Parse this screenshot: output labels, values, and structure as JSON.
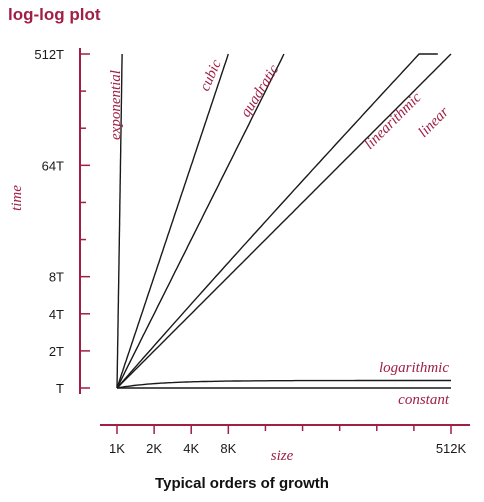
{
  "chart_data": {
    "type": "line",
    "title": "log-log plot",
    "caption": "Typical orders of growth",
    "xlabel": "size",
    "ylabel": "time",
    "x_scale": "log",
    "y_scale": "log",
    "x_ticks": [
      "1K",
      "2K",
      "4K",
      "8K",
      "512K"
    ],
    "y_ticks": [
      "T",
      "2T",
      "4T",
      "8T",
      "64T",
      "512T"
    ],
    "series": [
      {
        "name": "constant",
        "x": [
          "1K",
          "512K"
        ],
        "y": [
          "T",
          "T"
        ]
      },
      {
        "name": "logarithmic",
        "x": [
          "1K",
          "4K",
          "512K"
        ],
        "y": [
          "T",
          "1.1T",
          "1.15T"
        ]
      },
      {
        "name": "linear",
        "x": [
          "1K",
          "512K"
        ],
        "y": [
          "T",
          "512T"
        ]
      },
      {
        "name": "linearithmic",
        "x": [
          "1K",
          "400K"
        ],
        "y": [
          "T",
          "512T"
        ]
      },
      {
        "name": "quadratic",
        "x": [
          "1K",
          "22.6K"
        ],
        "y": [
          "T",
          "512T"
        ]
      },
      {
        "name": "cubic",
        "x": [
          "1K",
          "8K"
        ],
        "y": [
          "T",
          "512T"
        ]
      },
      {
        "name": "exponential",
        "x": [
          "1K",
          "1.1K"
        ],
        "y": [
          "T",
          "512T"
        ]
      }
    ],
    "colors": {
      "accent": "#a01f45",
      "line": "#1a1a1a"
    }
  }
}
